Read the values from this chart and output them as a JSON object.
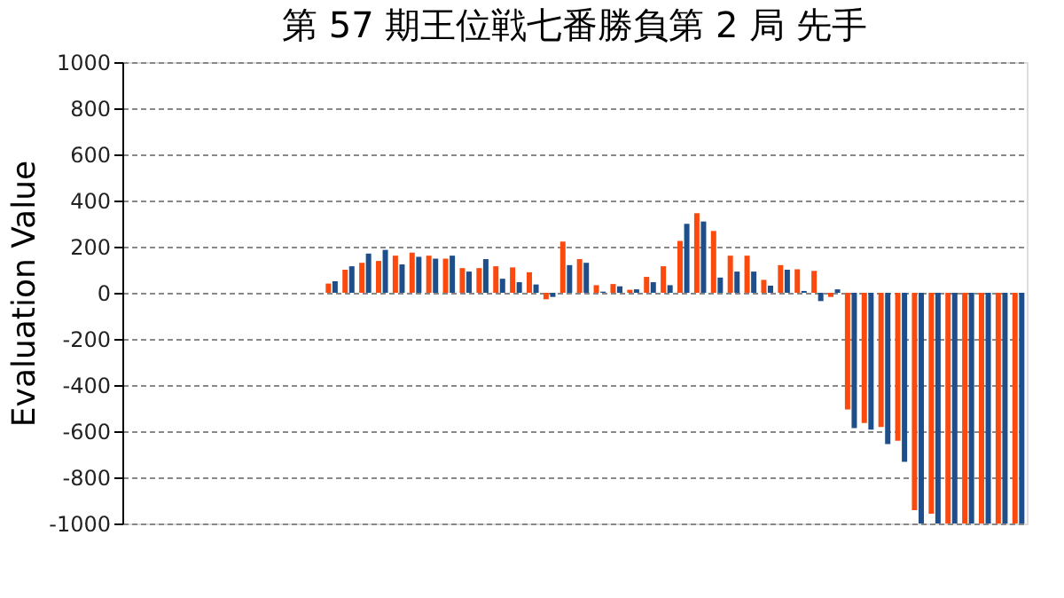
{
  "chart_data": {
    "type": "bar",
    "title": "第 57 期王位戦七番勝負第 2 局 先手",
    "ylabel": "Evaluation Value",
    "categories": [
      null,
      null,
      null,
      null,
      null,
      null,
      null,
      null,
      null,
      null,
      null,
      null,
      null,
      null,
      null,
      null,
      null,
      null,
      null,
      null,
      null,
      null,
      null,
      null,
      null,
      null,
      null,
      null,
      null,
      null,
      null,
      null,
      null,
      null,
      null,
      null,
      null,
      null,
      null,
      null,
      null,
      null,
      null,
      null,
      null,
      null,
      null,
      null,
      null,
      null,
      null,
      null,
      null,
      null
    ],
    "series": [
      {
        "color": "#fc4a0f",
        "values": [
          null,
          null,
          null,
          null,
          null,
          null,
          null,
          null,
          null,
          null,
          null,
          null,
          40,
          100,
          130,
          138,
          161,
          174,
          161,
          148,
          107,
          107,
          115,
          110,
          89,
          -28,
          222,
          146,
          33,
          38,
          13,
          69,
          115,
          225,
          345,
          268,
          161,
          161,
          56,
          120,
          102,
          95,
          -18,
          -506,
          -564,
          -582,
          -641,
          -942,
          -958,
          -1000,
          -1000,
          -1000,
          -1000,
          -1000
        ]
      },
      {
        "color": "#1f4f8a",
        "values": [
          null,
          null,
          null,
          null,
          null,
          null,
          null,
          null,
          null,
          null,
          null,
          null,
          50,
          115,
          170,
          186,
          123,
          156,
          148,
          161,
          92,
          146,
          61,
          46,
          36,
          -18,
          120,
          130,
          5,
          28,
          15,
          46,
          33,
          299,
          309,
          66,
          92,
          92,
          31,
          100,
          8,
          -36,
          15,
          -587,
          -593,
          -656,
          -733,
          -1000,
          -1000,
          -1000,
          -1000,
          -1000,
          -1000,
          -1000
        ]
      }
    ],
    "ylim": [
      -1000,
      1000
    ],
    "yticks": [
      -1000,
      -800,
      -600,
      -400,
      -200,
      0,
      200,
      400,
      600,
      800,
      1000
    ],
    "grid": "y",
    "tick_labels": "y",
    "legend": false
  }
}
